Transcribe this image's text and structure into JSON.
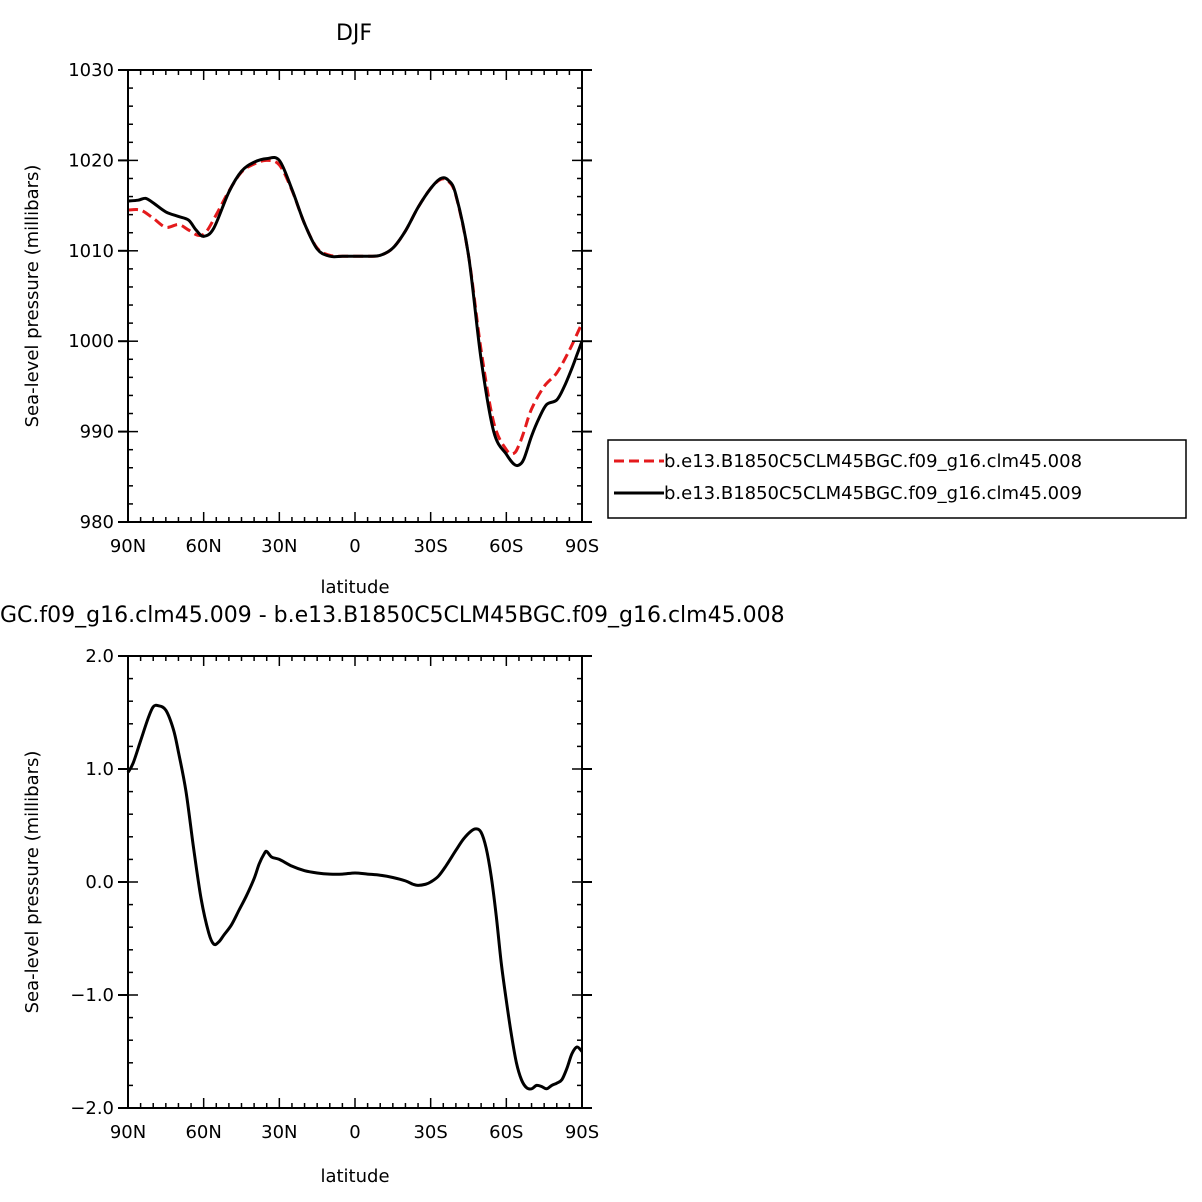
{
  "chart_data": [
    {
      "type": "line",
      "title": "DJF",
      "xlabel": "latitude",
      "ylabel": "Sea-level pressure (millibars)",
      "xlim": [
        90,
        -90
      ],
      "ylim": [
        980,
        1030
      ],
      "xticks": [
        90,
        60,
        30,
        0,
        -30,
        -60,
        -90
      ],
      "xtick_labels": [
        "90N",
        "60N",
        "30N",
        "0",
        "30S",
        "60S",
        "90S"
      ],
      "yticks": [
        980,
        990,
        1000,
        1010,
        1020,
        1030
      ],
      "ytick_labels": [
        "980",
        "990",
        "1000",
        "1010",
        "1020",
        "1030"
      ],
      "legend_position": "right",
      "series": [
        {
          "name": "b.e13.B1850C5CLM45BGC.f09_g16.clm45.008",
          "color": "#e41a1c",
          "style": "dashed",
          "x": [
            90,
            85,
            80,
            75,
            70,
            66,
            62,
            59,
            55,
            50,
            45,
            40,
            35,
            30,
            25,
            20,
            15,
            10,
            5,
            0,
            -5,
            -10,
            -15,
            -20,
            -25,
            -30,
            -34,
            -37,
            -40,
            -45,
            -50,
            -55,
            -60,
            -63,
            -65,
            -67,
            -70,
            -75,
            -80,
            -85,
            -90
          ],
          "y": [
            1014.5,
            1014.5,
            1013.6,
            1012.6,
            1012.9,
            1012.3,
            1011.7,
            1012.1,
            1014.0,
            1016.6,
            1018.7,
            1019.6,
            1020.0,
            1019.5,
            1016.7,
            1013.0,
            1010.3,
            1009.5,
            1009.4,
            1009.4,
            1009.4,
            1009.5,
            1010.3,
            1012.2,
            1014.8,
            1016.9,
            1017.9,
            1017.7,
            1016.1,
            1009.5,
            999.0,
            991.0,
            988.0,
            987.6,
            988.5,
            990.0,
            992.5,
            995.0,
            996.5,
            999.0,
            1002.0
          ]
        },
        {
          "name": "b.e13.B1850C5CLM45BGC.f09_g16.clm45.009",
          "color": "#000000",
          "style": "solid",
          "x": [
            90,
            86,
            83,
            80,
            75,
            70,
            66,
            63,
            60,
            56,
            50,
            45,
            40,
            35,
            30,
            25,
            20,
            15,
            10,
            5,
            0,
            -5,
            -10,
            -15,
            -20,
            -25,
            -30,
            -34,
            -37,
            -40,
            -45,
            -50,
            -55,
            -60,
            -63,
            -65,
            -67,
            -70,
            -73,
            -76,
            -80,
            -83,
            -86,
            -88,
            -90
          ],
          "y": [
            1015.5,
            1015.6,
            1015.8,
            1015.3,
            1014.3,
            1013.8,
            1013.4,
            1012.3,
            1011.6,
            1012.5,
            1016.5,
            1018.8,
            1019.8,
            1020.2,
            1020.0,
            1016.8,
            1013.0,
            1010.2,
            1009.4,
            1009.4,
            1009.4,
            1009.4,
            1009.5,
            1010.3,
            1012.2,
            1014.8,
            1016.9,
            1018.0,
            1017.8,
            1016.2,
            1009.5,
            998.0,
            990.0,
            987.5,
            986.4,
            986.3,
            987.0,
            989.5,
            991.5,
            993.0,
            993.5,
            995.0,
            997.0,
            998.5,
            1000.0
          ]
        }
      ]
    },
    {
      "type": "line",
      "title": "GC.f09_g16.clm45.009 - b.e13.B1850C5CLM45BGC.f09_g16.clm45.008",
      "xlabel": "latitude",
      "ylabel": "Sea-level pressure (millibars)",
      "xlim": [
        90,
        -90
      ],
      "ylim": [
        -2.0,
        2.0
      ],
      "xticks": [
        90,
        60,
        30,
        0,
        -30,
        -60,
        -90
      ],
      "xtick_labels": [
        "90N",
        "60N",
        "30N",
        "0",
        "30S",
        "60S",
        "90S"
      ],
      "yticks": [
        -2.0,
        -1.0,
        0.0,
        1.0,
        2.0
      ],
      "ytick_labels": [
        "−2.0",
        "−1.0",
        "0.0",
        "1.0",
        "2.0"
      ],
      "series": [
        {
          "color": "#000000",
          "style": "solid",
          "x": [
            90,
            88,
            85,
            82,
            80,
            78,
            75,
            72,
            70,
            67,
            64,
            61,
            58,
            56,
            54,
            52,
            49,
            46,
            43,
            40,
            38,
            36,
            35,
            33,
            30,
            25,
            20,
            15,
            10,
            5,
            0,
            -5,
            -10,
            -15,
            -20,
            -23,
            -25,
            -28,
            -30,
            -33,
            -36,
            -40,
            -43,
            -46,
            -48,
            -50,
            -52,
            -54,
            -56,
            -58,
            -60,
            -62,
            -64,
            -66,
            -68,
            -70,
            -72,
            -74,
            -76,
            -78,
            -80,
            -82,
            -84,
            -86,
            -88,
            -90
          ],
          "y": [
            0.97,
            1.05,
            1.25,
            1.45,
            1.55,
            1.56,
            1.52,
            1.35,
            1.15,
            0.8,
            0.3,
            -0.15,
            -0.45,
            -0.55,
            -0.53,
            -0.47,
            -0.38,
            -0.25,
            -0.12,
            0.03,
            0.16,
            0.25,
            0.27,
            0.22,
            0.2,
            0.14,
            0.1,
            0.08,
            0.07,
            0.07,
            0.08,
            0.07,
            0.06,
            0.04,
            0.01,
            -0.02,
            -0.03,
            -0.02,
            0.0,
            0.05,
            0.14,
            0.28,
            0.38,
            0.45,
            0.47,
            0.44,
            0.3,
            0.05,
            -0.3,
            -0.72,
            -1.05,
            -1.35,
            -1.6,
            -1.75,
            -1.82,
            -1.83,
            -1.8,
            -1.81,
            -1.83,
            -1.8,
            -1.78,
            -1.75,
            -1.65,
            -1.52,
            -1.46,
            -1.5
          ]
        }
      ]
    }
  ]
}
